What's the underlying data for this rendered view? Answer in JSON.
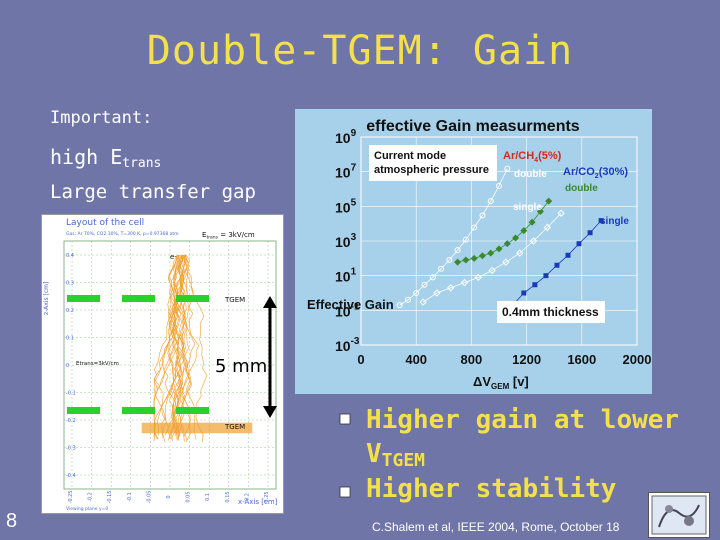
{
  "slide": {
    "title": "Double-TGEM: Gain",
    "page_number": "8",
    "footer": "C.Shalem et al,  IEEE 2004, Rome, October 18",
    "notes": {
      "important": "Important:",
      "high_e": "high E",
      "high_e_sub": "trans",
      "gap": "Large transfer gap"
    },
    "gap_label": "5 mm",
    "bullets": [
      {
        "text": "Higher gain at lower V",
        "sub": "TGEM"
      },
      {
        "text": "Higher stability"
      }
    ],
    "colors": {
      "background": "#7075a8",
      "accent": "#f3e04a",
      "chart_bg": "#a7d1ea"
    }
  },
  "sim": {
    "title": "Layout of the cell",
    "header": "Gas: Ar 70%, CO2 30%, T=300 K, p=0.97368 atm",
    "e_top": "E",
    "e_top_sub": "trans",
    "e_top_value": " = 3kV/cm",
    "e_mid": "Etrans=3kV/cm",
    "electron": "e-",
    "tgem1": "TGEM",
    "tgem2": "TGEM",
    "yaxis": "z-Axis [cm]",
    "xaxis": "x-Axis [cm]",
    "viewing": "Viewing plane y=0",
    "yticks": [
      "0.4",
      "0.3",
      "0.2",
      "0.1",
      "0",
      "-0.1",
      "-0.2",
      "-0.3",
      "-0.4"
    ],
    "xticks": [
      "-0.25",
      "-0.2",
      "-0.15",
      "-0.1",
      "-0.05",
      "0",
      "0.05",
      "0.1",
      "0.15",
      "0.2",
      "0.25"
    ]
  },
  "chart_data": {
    "type": "scatter",
    "title": "effective Gain measurments",
    "xlabel": "ΔV",
    "xlabel_sub": "GEM",
    "xlabel_unit": " [v]",
    "ylabel": "Effective Gain",
    "yscale": "log",
    "xlim": [
      0,
      2000
    ],
    "ylim": [
      0.001,
      1000000000
    ],
    "xticks": [
      "0",
      "400",
      "800",
      "1200",
      "1600",
      "2000"
    ],
    "yticks": [
      {
        "base": "10",
        "exp": "9",
        "value": 1000000000
      },
      {
        "base": "10",
        "exp": "7",
        "value": 10000000
      },
      {
        "base": "10",
        "exp": "5",
        "value": 100000
      },
      {
        "base": "10",
        "exp": "3",
        "value": 1000
      },
      {
        "base": "10",
        "exp": "1",
        "value": 10
      },
      {
        "base": "10",
        "exp": "-1",
        "value": 0.1
      },
      {
        "base": "10",
        "exp": "-3",
        "value": 0.001
      }
    ],
    "annotations": {
      "mode_line1": "Current mode",
      "mode_line2": "atmospheric pressure",
      "thickness": "0.4mm thickness",
      "gas1": "Ar/CH",
      "gas1_sub": "4",
      "gas1_tail": "(5%)",
      "gas2": "Ar/CO",
      "gas2_sub": "2",
      "gas2_tail": "(30%)",
      "double1": "double",
      "double2": "double",
      "single1": "single",
      "single2": "single"
    },
    "series": [
      {
        "name": "Ar/CH4(5%) double",
        "color": "#ffffff",
        "marker": "open-circle",
        "x": [
          280,
          340,
          400,
          460,
          520,
          580,
          640,
          700,
          760,
          820,
          880,
          940,
          1000,
          1060
        ],
        "y": [
          0.2,
          0.4,
          1,
          3,
          8,
          25,
          80,
          300,
          1200,
          6000,
          30000,
          200000,
          1500000,
          15000000
        ]
      },
      {
        "name": "Ar/CH4(5%) single",
        "color": "#ffffff",
        "marker": "open-diamond",
        "x": [
          450,
          550,
          650,
          750,
          850,
          950,
          1050,
          1150,
          1250,
          1350,
          1450
        ],
        "y": [
          0.3,
          1,
          2,
          4,
          8,
          20,
          60,
          200,
          1000,
          6000,
          40000
        ]
      },
      {
        "name": "Ar/CO2(30%) double",
        "color": "#3a8a2a",
        "marker": "diamond",
        "x": [
          700,
          760,
          820,
          880,
          940,
          1000,
          1060,
          1120,
          1180,
          1240,
          1300,
          1360
        ],
        "y": [
          60,
          80,
          100,
          140,
          200,
          350,
          700,
          1500,
          4000,
          12000,
          50000,
          200000
        ]
      },
      {
        "name": "Ar/CO2(30%) single",
        "color": "#1a3ab8",
        "marker": "square",
        "x": [
          1100,
          1180,
          1260,
          1340,
          1420,
          1500,
          1580,
          1660,
          1740
        ],
        "y": [
          0.2,
          1,
          3,
          10,
          40,
          150,
          700,
          3000,
          15000
        ]
      }
    ]
  }
}
